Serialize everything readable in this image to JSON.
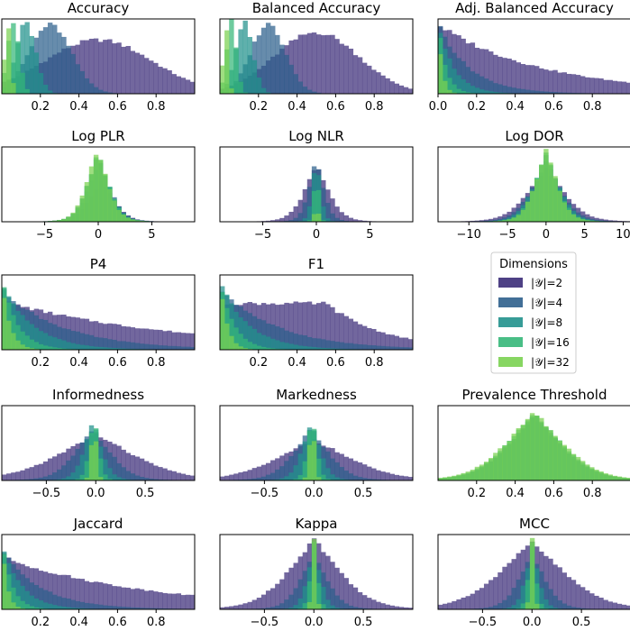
{
  "figure": {
    "legend": {
      "title": "Dimensions",
      "placement": "grid cell row 3, column 3",
      "entries": [
        {
          "label": "|𝒴|=2",
          "color": "#3b2c78"
        },
        {
          "label": "|𝒴|=4",
          "color": "#2d5f8c"
        },
        {
          "label": "|𝒴|=8",
          "color": "#21918c"
        },
        {
          "label": "|𝒴|=16",
          "color": "#35b779"
        },
        {
          "label": "|𝒴|=32",
          "color": "#7ad151"
        }
      ]
    },
    "series_opacity": 0.72
  },
  "chart_data": [
    {
      "type": "histogram",
      "title": "Accuracy",
      "shape": "unit-overlap",
      "xlim": [
        0,
        1
      ],
      "xticks": [
        0.2,
        0.4,
        0.6,
        0.8
      ],
      "xtick_labels": [
        "0.2",
        "0.4",
        "0.6",
        "0.8"
      ],
      "series": [
        {
          "name": "|𝒴|=2",
          "center": 0.5,
          "spread": 0.28,
          "peak": 0.72
        },
        {
          "name": "|𝒴|=4",
          "center": 0.25,
          "spread": 0.11,
          "peak": 0.92
        },
        {
          "name": "|𝒴|=8",
          "center": 0.125,
          "spread": 0.05,
          "peak": 0.95
        },
        {
          "name": "|𝒴|=16",
          "center": 0.06,
          "spread": 0.03,
          "peak": 0.98
        },
        {
          "name": "|𝒴|=32",
          "center": 0.03,
          "spread": 0.015,
          "peak": 0.97
        }
      ]
    },
    {
      "type": "histogram",
      "title": "Balanced Accuracy",
      "shape": "unit-overlap",
      "xlim": [
        0,
        1
      ],
      "xticks": [
        0.2,
        0.4,
        0.6,
        0.8
      ],
      "xtick_labels": [
        "0.2",
        "0.4",
        "0.6",
        "0.8"
      ],
      "series": [
        {
          "name": "|𝒴|=2",
          "center": 0.5,
          "spread": 0.22,
          "peak": 0.82
        },
        {
          "name": "|𝒴|=4",
          "center": 0.25,
          "spread": 0.09,
          "peak": 0.93
        },
        {
          "name": "|𝒴|=8",
          "center": 0.125,
          "spread": 0.045,
          "peak": 0.95
        },
        {
          "name": "|𝒴|=16",
          "center": 0.06,
          "spread": 0.025,
          "peak": 0.98
        },
        {
          "name": "|𝒴|=32",
          "center": 0.03,
          "spread": 0.013,
          "peak": 0.97
        }
      ]
    },
    {
      "type": "histogram",
      "title": "Adj. Balanced Accuracy",
      "shape": "decay",
      "xlim": [
        0,
        1
      ],
      "xticks": [
        0.0,
        0.2,
        0.4,
        0.6,
        0.8
      ],
      "xtick_labels": [
        "0.0",
        "0.2",
        "0.4",
        "0.6",
        "0.8"
      ],
      "series": [
        {
          "name": "|𝒴|=2",
          "center": 0.0,
          "spread": 0.55,
          "peak": 0.92
        },
        {
          "name": "|𝒴|=4",
          "center": 0.0,
          "spread": 0.16,
          "peak": 0.95
        },
        {
          "name": "|𝒴|=8",
          "center": 0.0,
          "spread": 0.08,
          "peak": 0.97
        },
        {
          "name": "|𝒴|=16",
          "center": 0.0,
          "spread": 0.04,
          "peak": 0.98
        },
        {
          "name": "|𝒴|=32",
          "center": 0.0,
          "spread": 0.02,
          "peak": 0.99
        }
      ]
    },
    {
      "type": "histogram",
      "title": "Log PLR",
      "shape": "symmetric",
      "xlim": [
        -9,
        9
      ],
      "xticks": [
        -5,
        0,
        5
      ],
      "xtick_labels": [
        "−5",
        "0",
        "5"
      ],
      "series": [
        {
          "name": "|𝒴|=2",
          "center": 0.3,
          "spread": 1.3,
          "peak": 0.55
        },
        {
          "name": "|𝒴|=4",
          "center": 0.1,
          "spread": 1.2,
          "peak": 0.8
        },
        {
          "name": "|𝒴|=8",
          "center": 0.0,
          "spread": 1.15,
          "peak": 0.9
        },
        {
          "name": "|𝒴|=16",
          "center": 0.0,
          "spread": 1.1,
          "peak": 0.95
        },
        {
          "name": "|𝒴|=32",
          "center": -0.1,
          "spread": 1.1,
          "peak": 0.97
        }
      ]
    },
    {
      "type": "histogram",
      "title": "Log NLR",
      "shape": "symmetric",
      "xlim": [
        -9,
        9
      ],
      "xticks": [
        -5,
        0,
        5
      ],
      "xtick_labels": [
        "−5",
        "0",
        "5"
      ],
      "series": [
        {
          "name": "|𝒴|=2",
          "center": 0.0,
          "spread": 1.3,
          "peak": 0.75
        },
        {
          "name": "|𝒴|=4",
          "center": 0.0,
          "spread": 0.75,
          "peak": 0.85
        },
        {
          "name": "|𝒴|=8",
          "center": 0.0,
          "spread": 0.4,
          "peak": 0.9
        },
        {
          "name": "|𝒴|=16",
          "center": 0.0,
          "spread": 0.2,
          "peak": 0.95
        },
        {
          "name": "|𝒴|=32",
          "center": 0.0,
          "spread": 0.1,
          "peak": 0.97
        }
      ]
    },
    {
      "type": "histogram",
      "title": "Log DOR",
      "shape": "symmetric",
      "xlim": [
        -14,
        11
      ],
      "xticks": [
        -10,
        -5,
        0,
        5,
        10
      ],
      "xtick_labels": [
        "−10",
        "−5",
        "0",
        "5",
        "10"
      ],
      "series": [
        {
          "name": "|𝒴|=2",
          "center": 0.0,
          "spread": 2.7,
          "peak": 0.72
        },
        {
          "name": "|𝒴|=4",
          "center": 0.0,
          "spread": 2.2,
          "peak": 0.8
        },
        {
          "name": "|𝒴|=8",
          "center": 0.0,
          "spread": 1.9,
          "peak": 0.88
        },
        {
          "name": "|𝒴|=16",
          "center": 0.0,
          "spread": 1.7,
          "peak": 0.93
        },
        {
          "name": "|𝒴|=32",
          "center": 0.0,
          "spread": 1.6,
          "peak": 0.97
        }
      ]
    },
    {
      "type": "histogram",
      "title": "P4",
      "shape": "decay",
      "xlim": [
        0,
        1
      ],
      "xticks": [
        0.2,
        0.4,
        0.6,
        0.8
      ],
      "xtick_labels": [
        "0.2",
        "0.4",
        "0.6",
        "0.8"
      ],
      "series": [
        {
          "name": "|𝒴|=2",
          "center": 0.0,
          "spread": 0.9,
          "peak": 0.65
        },
        {
          "name": "|𝒴|=4",
          "center": 0.0,
          "spread": 0.32,
          "peak": 0.8
        },
        {
          "name": "|𝒴|=8",
          "center": 0.0,
          "spread": 0.16,
          "peak": 0.9
        },
        {
          "name": "|𝒴|=16",
          "center": 0.0,
          "spread": 0.08,
          "peak": 0.95
        },
        {
          "name": "|𝒴|=32",
          "center": 0.0,
          "spread": 0.04,
          "peak": 0.97
        }
      ]
    },
    {
      "type": "histogram",
      "title": "F1",
      "shape": "decay",
      "xlim": [
        0,
        1
      ],
      "xticks": [
        0.2,
        0.4,
        0.6,
        0.8
      ],
      "xtick_labels": [
        "0.2",
        "0.4",
        "0.6",
        "0.8"
      ],
      "series": [
        {
          "name": "|𝒴|=2",
          "center": 0.55,
          "spread": 0.3,
          "peak": 0.62
        },
        {
          "name": "|𝒴|=4",
          "center": 0.0,
          "spread": 0.3,
          "peak": 0.82
        },
        {
          "name": "|𝒴|=8",
          "center": 0.0,
          "spread": 0.15,
          "peak": 0.9
        },
        {
          "name": "|𝒴|=16",
          "center": 0.0,
          "spread": 0.07,
          "peak": 0.95
        },
        {
          "name": "|𝒴|=32",
          "center": 0.0,
          "spread": 0.035,
          "peak": 0.97
        }
      ]
    },
    null,
    {
      "type": "histogram",
      "title": "Informedness",
      "shape": "symmetric",
      "xlim": [
        -0.95,
        1.0
      ],
      "xticks": [
        -0.5,
        0.0,
        0.5
      ],
      "xtick_labels": [
        "−0.5",
        "0.0",
        "0.5"
      ],
      "series": [
        {
          "name": "|𝒴|=2",
          "center": 0.0,
          "spread": 0.45,
          "peak": 0.62
        },
        {
          "name": "|𝒴|=4",
          "center": -0.03,
          "spread": 0.2,
          "peak": 0.7
        },
        {
          "name": "|𝒴|=8",
          "center": -0.03,
          "spread": 0.1,
          "peak": 0.8
        },
        {
          "name": "|𝒴|=16",
          "center": -0.02,
          "spread": 0.05,
          "peak": 0.9
        },
        {
          "name": "|𝒴|=32",
          "center": -0.02,
          "spread": 0.025,
          "peak": 0.97
        }
      ]
    },
    {
      "type": "histogram",
      "title": "Markedness",
      "shape": "symmetric",
      "xlim": [
        -0.95,
        1.0
      ],
      "xticks": [
        -0.5,
        0.0,
        0.5
      ],
      "xtick_labels": [
        "−0.5",
        "0.0",
        "0.5"
      ],
      "series": [
        {
          "name": "|𝒴|=2",
          "center": 0.0,
          "spread": 0.42,
          "peak": 0.55
        },
        {
          "name": "|𝒴|=4",
          "center": -0.03,
          "spread": 0.2,
          "peak": 0.7
        },
        {
          "name": "|𝒴|=8",
          "center": -0.03,
          "spread": 0.1,
          "peak": 0.8
        },
        {
          "name": "|𝒴|=16",
          "center": -0.02,
          "spread": 0.05,
          "peak": 0.9
        },
        {
          "name": "|𝒴|=32",
          "center": -0.02,
          "spread": 0.025,
          "peak": 0.97
        }
      ]
    },
    {
      "type": "histogram",
      "title": "Prevalence Threshold",
      "shape": "symmetric",
      "xlim": [
        0,
        1
      ],
      "xticks": [
        0.2,
        0.4,
        0.6,
        0.8
      ],
      "xtick_labels": [
        "0.2",
        "0.4",
        "0.6",
        "0.8"
      ],
      "series": [
        {
          "name": "|𝒴|=2",
          "center": 0.5,
          "spread": 0.16,
          "peak": 0.85
        },
        {
          "name": "|𝒴|=4",
          "center": 0.5,
          "spread": 0.16,
          "peak": 0.87
        },
        {
          "name": "|𝒴|=8",
          "center": 0.5,
          "spread": 0.16,
          "peak": 0.88
        },
        {
          "name": "|𝒴|=16",
          "center": 0.5,
          "spread": 0.165,
          "peak": 0.9
        },
        {
          "name": "|𝒴|=32",
          "center": 0.5,
          "spread": 0.17,
          "peak": 0.92
        }
      ]
    },
    {
      "type": "histogram",
      "title": "Jaccard",
      "shape": "decay",
      "xlim": [
        0,
        1
      ],
      "xticks": [
        0.2,
        0.4,
        0.6,
        0.8
      ],
      "xtick_labels": [
        "0.2",
        "0.4",
        "0.6",
        "0.8"
      ],
      "series": [
        {
          "name": "|𝒴|=2",
          "center": 0.0,
          "spread": 0.75,
          "peak": 0.7
        },
        {
          "name": "|𝒴|=4",
          "center": 0.0,
          "spread": 0.2,
          "peak": 0.8
        },
        {
          "name": "|𝒴|=8",
          "center": 0.0,
          "spread": 0.1,
          "peak": 0.9
        },
        {
          "name": "|𝒴|=16",
          "center": 0.0,
          "spread": 0.05,
          "peak": 0.95
        },
        {
          "name": "|𝒴|=32",
          "center": 0.0,
          "spread": 0.025,
          "peak": 0.97
        }
      ]
    },
    {
      "type": "histogram",
      "title": "Kappa",
      "shape": "symmetric",
      "xlim": [
        -0.95,
        1.0
      ],
      "xticks": [
        -0.5,
        0.0,
        0.5
      ],
      "xtick_labels": [
        "−0.5",
        "0.0",
        "0.5"
      ],
      "series": [
        {
          "name": "|𝒴|=2",
          "center": 0.0,
          "spread": 0.3,
          "peak": 0.95
        },
        {
          "name": "|𝒴|=4",
          "center": 0.0,
          "spread": 0.15,
          "peak": 0.75
        },
        {
          "name": "|𝒴|=8",
          "center": 0.0,
          "spread": 0.075,
          "peak": 0.82
        },
        {
          "name": "|𝒴|=16",
          "center": 0.0,
          "spread": 0.04,
          "peak": 0.9
        },
        {
          "name": "|𝒴|=32",
          "center": 0.0,
          "spread": 0.02,
          "peak": 0.97
        }
      ]
    },
    {
      "type": "histogram",
      "title": "MCC",
      "shape": "symmetric",
      "xlim": [
        -0.95,
        1.0
      ],
      "xticks": [
        -0.5,
        0.0,
        0.5
      ],
      "xtick_labels": [
        "−0.5",
        "0.0",
        "0.5"
      ],
      "series": [
        {
          "name": "|𝒴|=2",
          "center": 0.0,
          "spread": 0.38,
          "peak": 0.9
        },
        {
          "name": "|𝒴|=4",
          "center": 0.0,
          "spread": 0.15,
          "peak": 0.75
        },
        {
          "name": "|𝒴|=8",
          "center": 0.0,
          "spread": 0.075,
          "peak": 0.82
        },
        {
          "name": "|𝒴|=16",
          "center": 0.0,
          "spread": 0.04,
          "peak": 0.9
        },
        {
          "name": "|𝒴|=32",
          "center": 0.0,
          "spread": 0.02,
          "peak": 0.97
        }
      ]
    }
  ]
}
